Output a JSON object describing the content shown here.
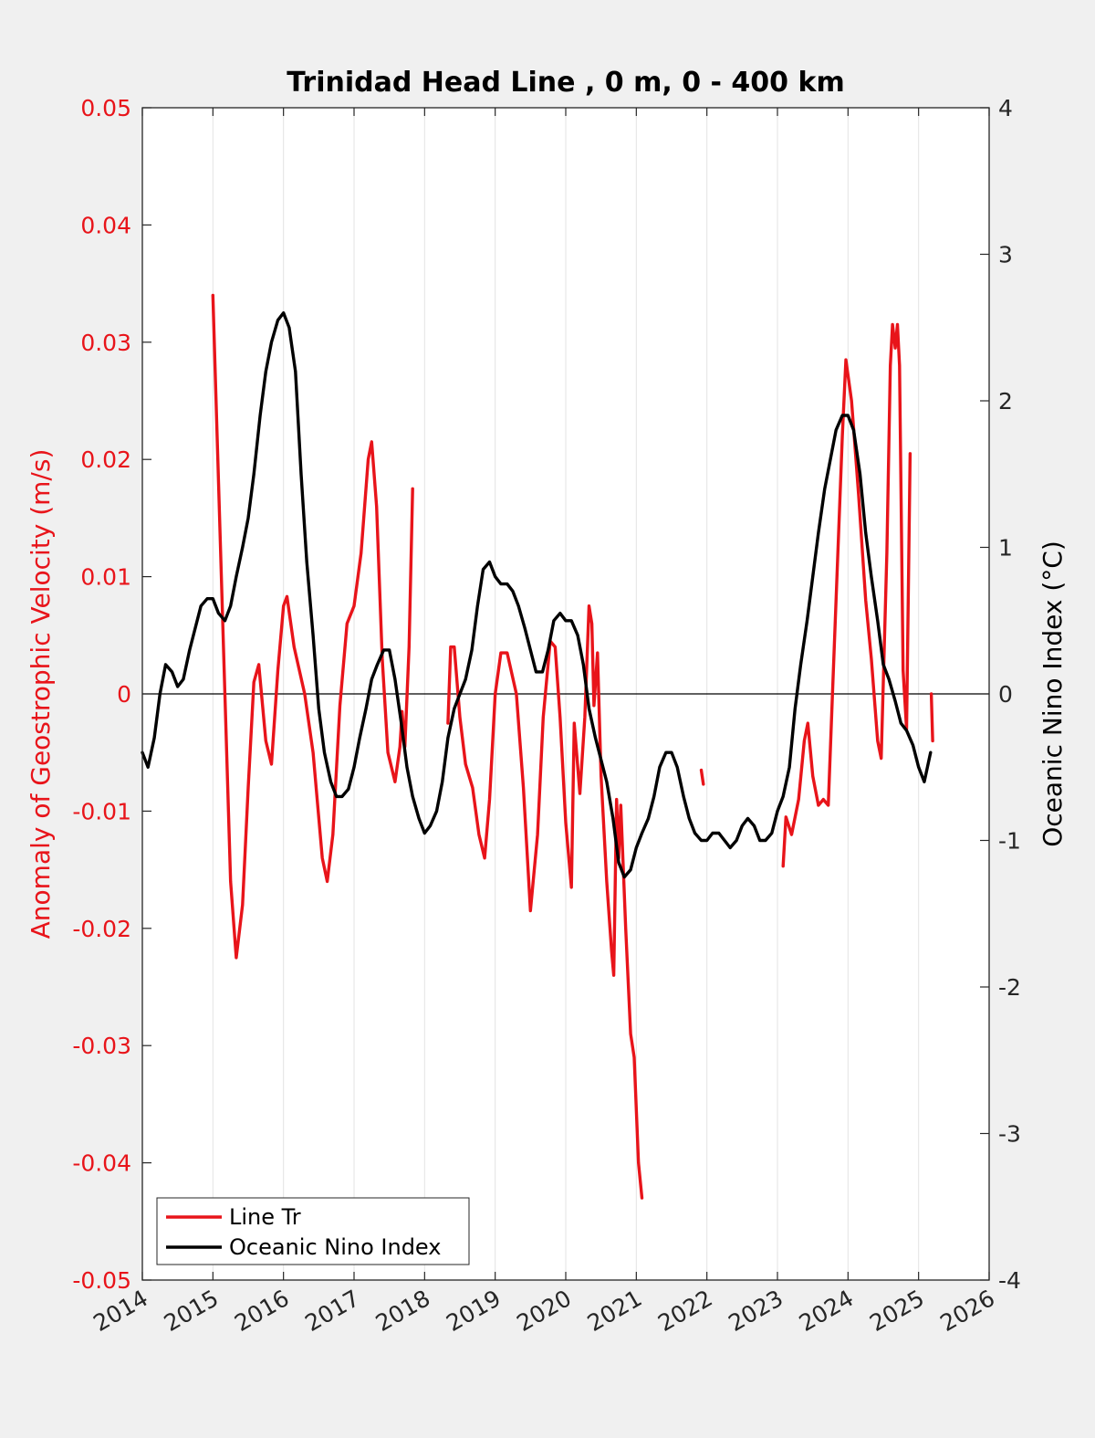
{
  "chart_data": {
    "type": "line",
    "title": "Trinidad Head Line , 0 m, 0 - 400 km",
    "ylabel_left": "Anomaly of Geostrophic Velocity (m/s)",
    "ylabel_right": "Oceanic Nino Index (°C)",
    "xlim": [
      2014,
      2026
    ],
    "ylim_left": [
      -0.05,
      0.05
    ],
    "ylim_right": [
      -4,
      4
    ],
    "x_ticks": [
      "2014",
      "2015",
      "2016",
      "2017",
      "2018",
      "2019",
      "2020",
      "2021",
      "2022",
      "2023",
      "2024",
      "2025",
      "2026"
    ],
    "y_left_ticks": [
      "0.05",
      "0.04",
      "0.03",
      "0.02",
      "0.01",
      "0",
      "-0.01",
      "-0.02",
      "-0.03",
      "-0.04",
      "-0.05"
    ],
    "y_right_ticks": [
      "4",
      "3",
      "2",
      "1",
      "0",
      "-1",
      "-2",
      "-3",
      "-4"
    ],
    "grid_x": true,
    "legend_position": "bottom-left",
    "colors": {
      "line_tr": "#e8141a",
      "oni": "#000000",
      "left_axis": "#e8141a"
    },
    "series": [
      {
        "name": "Line Tr",
        "axis": "left",
        "segments": [
          [
            [
              2015.0,
              0.034
            ],
            [
              2015.08,
              0.018
            ],
            [
              2015.15,
              0.004
            ],
            [
              2015.25,
              -0.016
            ],
            [
              2015.33,
              -0.0225
            ],
            [
              2015.42,
              -0.018
            ],
            [
              2015.5,
              -0.008
            ],
            [
              2015.58,
              0.001
            ],
            [
              2015.65,
              0.0025
            ],
            [
              2015.75,
              -0.004
            ],
            [
              2015.83,
              -0.006
            ],
            [
              2015.92,
              0.002
            ],
            [
              2016.0,
              0.0075
            ],
            [
              2016.05,
              0.0083
            ],
            [
              2016.15,
              0.004
            ],
            [
              2016.3,
              0.0
            ],
            [
              2016.42,
              -0.005
            ],
            [
              2016.55,
              -0.014
            ],
            [
              2016.62,
              -0.016
            ],
            [
              2016.7,
              -0.012
            ],
            [
              2016.8,
              -0.001
            ],
            [
              2016.9,
              0.006
            ],
            [
              2017.0,
              0.0075
            ],
            [
              2017.1,
              0.012
            ],
            [
              2017.2,
              0.02
            ],
            [
              2017.25,
              0.0215
            ],
            [
              2017.32,
              0.016
            ],
            [
              2017.4,
              0.003
            ],
            [
              2017.48,
              -0.005
            ],
            [
              2017.58,
              -0.0075
            ],
            [
              2017.65,
              -0.0045
            ],
            [
              2017.68,
              -0.0015
            ],
            [
              2017.72,
              -0.0045
            ],
            [
              2017.78,
              0.004
            ],
            [
              2017.83,
              0.0175
            ]
          ],
          [
            [
              2018.33,
              -0.0025
            ],
            [
              2018.37,
              0.004
            ],
            [
              2018.42,
              0.004
            ],
            [
              2018.5,
              -0.002
            ],
            [
              2018.58,
              -0.006
            ],
            [
              2018.68,
              -0.008
            ],
            [
              2018.77,
              -0.012
            ],
            [
              2018.85,
              -0.014
            ],
            [
              2018.92,
              -0.009
            ],
            [
              2019.0,
              0.0
            ],
            [
              2019.08,
              0.0035
            ],
            [
              2019.17,
              0.0035
            ],
            [
              2019.3,
              0.0
            ],
            [
              2019.4,
              -0.008
            ],
            [
              2019.5,
              -0.0185
            ],
            [
              2019.6,
              -0.012
            ],
            [
              2019.68,
              -0.002
            ],
            [
              2019.78,
              0.0045
            ],
            [
              2019.85,
              0.004
            ],
            [
              2019.92,
              -0.002
            ],
            [
              2020.0,
              -0.011
            ],
            [
              2020.08,
              -0.0165
            ],
            [
              2020.12,
              -0.0025
            ],
            [
              2020.2,
              -0.0085
            ],
            [
              2020.27,
              -0.002
            ],
            [
              2020.33,
              0.0075
            ],
            [
              2020.37,
              0.006
            ],
            [
              2020.4,
              -0.001
            ],
            [
              2020.45,
              0.0035
            ],
            [
              2020.5,
              -0.007
            ],
            [
              2020.58,
              -0.016
            ],
            [
              2020.65,
              -0.022
            ],
            [
              2020.68,
              -0.024
            ],
            [
              2020.72,
              -0.009
            ],
            [
              2020.75,
              -0.014
            ],
            [
              2020.78,
              -0.0095
            ],
            [
              2020.85,
              -0.02
            ],
            [
              2020.92,
              -0.029
            ],
            [
              2020.97,
              -0.031
            ],
            [
              2021.03,
              -0.04
            ],
            [
              2021.08,
              -0.043
            ]
          ],
          [
            [
              2021.92,
              -0.0065
            ],
            [
              2021.95,
              -0.0077
            ]
          ],
          [
            [
              2023.08,
              -0.0147
            ],
            [
              2023.12,
              -0.0105
            ],
            [
              2023.2,
              -0.012
            ],
            [
              2023.3,
              -0.009
            ],
            [
              2023.38,
              -0.004
            ],
            [
              2023.43,
              -0.0025
            ],
            [
              2023.5,
              -0.007
            ],
            [
              2023.58,
              -0.0095
            ],
            [
              2023.65,
              -0.009
            ],
            [
              2023.72,
              -0.0095
            ],
            [
              2023.78,
              0.0
            ],
            [
              2023.85,
              0.011
            ],
            [
              2023.92,
              0.022
            ],
            [
              2023.97,
              0.0285
            ],
            [
              2024.05,
              0.025
            ],
            [
              2024.15,
              0.017
            ],
            [
              2024.25,
              0.008
            ],
            [
              2024.33,
              0.003
            ],
            [
              2024.42,
              -0.004
            ],
            [
              2024.47,
              -0.0055
            ],
            [
              2024.55,
              0.012
            ],
            [
              2024.6,
              0.028
            ],
            [
              2024.63,
              0.0315
            ],
            [
              2024.67,
              0.0295
            ],
            [
              2024.7,
              0.0315
            ],
            [
              2024.73,
              0.028
            ],
            [
              2024.78,
              0.002
            ],
            [
              2024.83,
              -0.003
            ],
            [
              2024.88,
              0.0205
            ]
          ],
          [
            [
              2025.18,
              0.0
            ],
            [
              2025.2,
              -0.004
            ]
          ]
        ]
      },
      {
        "name": "Oceanic Nino Index",
        "axis": "right",
        "segments": [
          [
            [
              2014.0,
              -0.4
            ],
            [
              2014.08,
              -0.5
            ],
            [
              2014.17,
              -0.3
            ],
            [
              2014.25,
              0.0
            ],
            [
              2014.33,
              0.2
            ],
            [
              2014.42,
              0.15
            ],
            [
              2014.5,
              0.05
            ],
            [
              2014.58,
              0.1
            ],
            [
              2014.67,
              0.3
            ],
            [
              2014.75,
              0.45
            ],
            [
              2014.83,
              0.6
            ],
            [
              2014.92,
              0.65
            ],
            [
              2015.0,
              0.65
            ],
            [
              2015.08,
              0.55
            ],
            [
              2015.17,
              0.5
            ],
            [
              2015.25,
              0.6
            ],
            [
              2015.33,
              0.8
            ],
            [
              2015.42,
              1.0
            ],
            [
              2015.5,
              1.2
            ],
            [
              2015.58,
              1.5
            ],
            [
              2015.67,
              1.9
            ],
            [
              2015.75,
              2.2
            ],
            [
              2015.83,
              2.4
            ],
            [
              2015.92,
              2.55
            ],
            [
              2016.0,
              2.6
            ],
            [
              2016.08,
              2.5
            ],
            [
              2016.17,
              2.2
            ],
            [
              2016.25,
              1.5
            ],
            [
              2016.33,
              0.9
            ],
            [
              2016.42,
              0.4
            ],
            [
              2016.5,
              -0.1
            ],
            [
              2016.58,
              -0.4
            ],
            [
              2016.67,
              -0.6
            ],
            [
              2016.75,
              -0.7
            ],
            [
              2016.83,
              -0.7
            ],
            [
              2016.92,
              -0.65
            ],
            [
              2017.0,
              -0.5
            ],
            [
              2017.08,
              -0.3
            ],
            [
              2017.17,
              -0.1
            ],
            [
              2017.25,
              0.1
            ],
            [
              2017.33,
              0.2
            ],
            [
              2017.42,
              0.3
            ],
            [
              2017.5,
              0.3
            ],
            [
              2017.58,
              0.1
            ],
            [
              2017.67,
              -0.2
            ],
            [
              2017.75,
              -0.5
            ],
            [
              2017.83,
              -0.7
            ],
            [
              2017.92,
              -0.85
            ],
            [
              2018.0,
              -0.95
            ],
            [
              2018.08,
              -0.9
            ],
            [
              2018.17,
              -0.8
            ],
            [
              2018.25,
              -0.6
            ],
            [
              2018.33,
              -0.3
            ],
            [
              2018.42,
              -0.1
            ],
            [
              2018.5,
              0.0
            ],
            [
              2018.58,
              0.1
            ],
            [
              2018.67,
              0.3
            ],
            [
              2018.75,
              0.6
            ],
            [
              2018.83,
              0.85
            ],
            [
              2018.92,
              0.9
            ],
            [
              2019.0,
              0.8
            ],
            [
              2019.08,
              0.75
            ],
            [
              2019.17,
              0.75
            ],
            [
              2019.25,
              0.7
            ],
            [
              2019.33,
              0.6
            ],
            [
              2019.42,
              0.45
            ],
            [
              2019.5,
              0.3
            ],
            [
              2019.58,
              0.15
            ],
            [
              2019.67,
              0.15
            ],
            [
              2019.75,
              0.3
            ],
            [
              2019.83,
              0.5
            ],
            [
              2019.92,
              0.55
            ],
            [
              2020.0,
              0.5
            ],
            [
              2020.08,
              0.5
            ],
            [
              2020.17,
              0.4
            ],
            [
              2020.25,
              0.2
            ],
            [
              2020.33,
              -0.1
            ],
            [
              2020.42,
              -0.3
            ],
            [
              2020.5,
              -0.45
            ],
            [
              2020.58,
              -0.6
            ],
            [
              2020.67,
              -0.85
            ],
            [
              2020.75,
              -1.15
            ],
            [
              2020.83,
              -1.25
            ],
            [
              2020.92,
              -1.2
            ],
            [
              2021.0,
              -1.05
            ],
            [
              2021.08,
              -0.95
            ],
            [
              2021.17,
              -0.85
            ],
            [
              2021.25,
              -0.7
            ],
            [
              2021.33,
              -0.5
            ],
            [
              2021.42,
              -0.4
            ],
            [
              2021.5,
              -0.4
            ],
            [
              2021.58,
              -0.5
            ],
            [
              2021.67,
              -0.7
            ],
            [
              2021.75,
              -0.85
            ],
            [
              2021.83,
              -0.95
            ],
            [
              2021.92,
              -1.0
            ],
            [
              2022.0,
              -1.0
            ],
            [
              2022.08,
              -0.95
            ],
            [
              2022.17,
              -0.95
            ],
            [
              2022.25,
              -1.0
            ],
            [
              2022.33,
              -1.05
            ],
            [
              2022.42,
              -1.0
            ],
            [
              2022.5,
              -0.9
            ],
            [
              2022.58,
              -0.85
            ],
            [
              2022.67,
              -0.9
            ],
            [
              2022.75,
              -1.0
            ],
            [
              2022.83,
              -1.0
            ],
            [
              2022.92,
              -0.95
            ],
            [
              2023.0,
              -0.8
            ],
            [
              2023.08,
              -0.7
            ],
            [
              2023.17,
              -0.5
            ],
            [
              2023.25,
              -0.1
            ],
            [
              2023.33,
              0.2
            ],
            [
              2023.42,
              0.5
            ],
            [
              2023.5,
              0.8
            ],
            [
              2023.58,
              1.1
            ],
            [
              2023.67,
              1.4
            ],
            [
              2023.75,
              1.6
            ],
            [
              2023.83,
              1.8
            ],
            [
              2023.92,
              1.9
            ],
            [
              2024.0,
              1.9
            ],
            [
              2024.08,
              1.8
            ],
            [
              2024.17,
              1.5
            ],
            [
              2024.25,
              1.1
            ],
            [
              2024.33,
              0.8
            ],
            [
              2024.42,
              0.5
            ],
            [
              2024.5,
              0.2
            ],
            [
              2024.58,
              0.1
            ],
            [
              2024.67,
              -0.05
            ],
            [
              2024.75,
              -0.2
            ],
            [
              2024.83,
              -0.25
            ],
            [
              2024.92,
              -0.35
            ],
            [
              2025.0,
              -0.5
            ],
            [
              2025.08,
              -0.6
            ],
            [
              2025.17,
              -0.4
            ]
          ]
        ]
      }
    ]
  }
}
